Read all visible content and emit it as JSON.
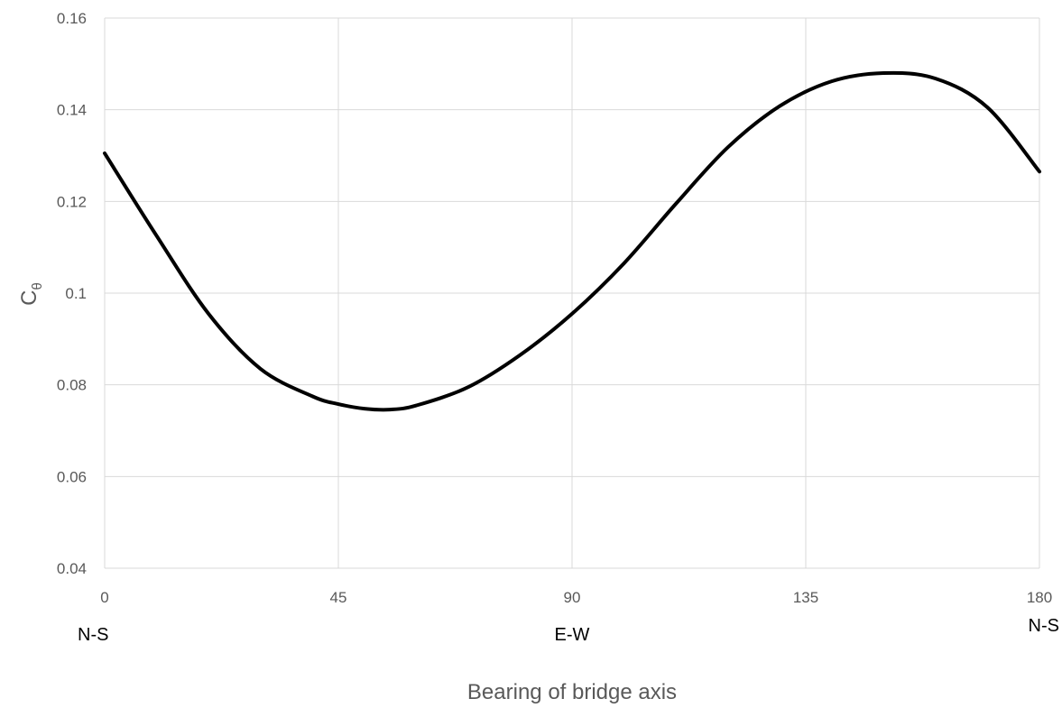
{
  "chart_data": {
    "type": "line",
    "xlabel": "Bearing of bridge axis",
    "ylabel": "C",
    "ylabel_subscript": "θ",
    "xlim": [
      0,
      180
    ],
    "ylim": [
      0.04,
      0.16
    ],
    "x_ticks": [
      0,
      45,
      90,
      135,
      180
    ],
    "x_tick_labels": [
      "0",
      "45",
      "90",
      "135",
      "180"
    ],
    "y_ticks": [
      0.04,
      0.06,
      0.08,
      0.1,
      0.12,
      0.14,
      0.16
    ],
    "y_tick_labels": [
      "0.04",
      "0.06",
      "0.08",
      "0.1",
      "0.12",
      "0.14",
      "0.16"
    ],
    "direction_labels": [
      {
        "x": 0,
        "label": "N-S"
      },
      {
        "x": 90,
        "label": "E-W"
      },
      {
        "x": 180,
        "label": "N-S"
      }
    ],
    "grid": true,
    "legend": "none",
    "line_color": "#000000",
    "series": [
      {
        "x": [
          0,
          10,
          20,
          30,
          40,
          45,
          50,
          55,
          60,
          70,
          80,
          90,
          100,
          110,
          120,
          130,
          140,
          150,
          160,
          170,
          180
        ],
        "y": [
          0.1305,
          0.1125,
          0.0955,
          0.0835,
          0.0775,
          0.0758,
          0.0748,
          0.0746,
          0.0755,
          0.0795,
          0.0865,
          0.0955,
          0.1065,
          0.1195,
          0.1318,
          0.1408,
          0.1462,
          0.148,
          0.1468,
          0.1405,
          0.1265
        ]
      }
    ]
  }
}
